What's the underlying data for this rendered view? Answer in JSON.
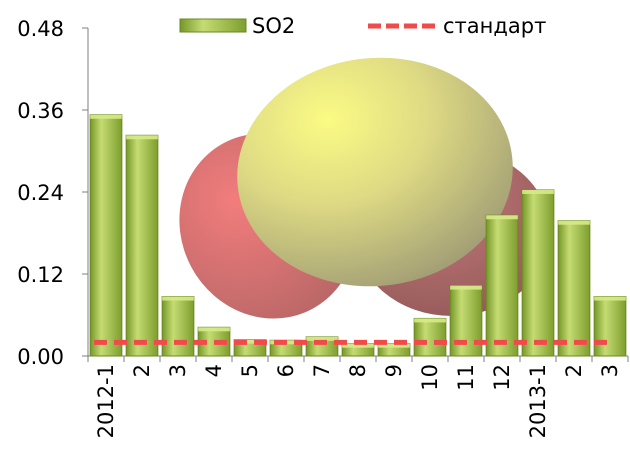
{
  "chart_data": {
    "type": "bar",
    "categories": [
      "2012-1",
      "2",
      "3",
      "4",
      "5",
      "6",
      "7",
      "8",
      "9",
      "10",
      "11",
      "12",
      "2013-1",
      "2",
      "3"
    ],
    "series": [
      {
        "name": "SO2",
        "type": "bar",
        "color": "#9ab83a",
        "values": [
          0.353,
          0.323,
          0.087,
          0.042,
          0.024,
          0.023,
          0.028,
          0.018,
          0.018,
          0.055,
          0.103,
          0.206,
          0.243,
          0.198,
          0.087
        ]
      },
      {
        "name": "стандарт",
        "type": "line",
        "style": "dashed",
        "color": "#f04a4a",
        "values": [
          0.02,
          0.02,
          0.02,
          0.02,
          0.02,
          0.02,
          0.02,
          0.02,
          0.02,
          0.02,
          0.02,
          0.02,
          0.02,
          0.02,
          0.02
        ]
      }
    ],
    "yticks": [
      "0.00",
      "0.12",
      "0.24",
      "0.36",
      "0.48"
    ],
    "ylim": [
      0,
      0.48
    ],
    "legend_position": "top",
    "grid": false,
    "background_image": "SO2 molecule"
  }
}
